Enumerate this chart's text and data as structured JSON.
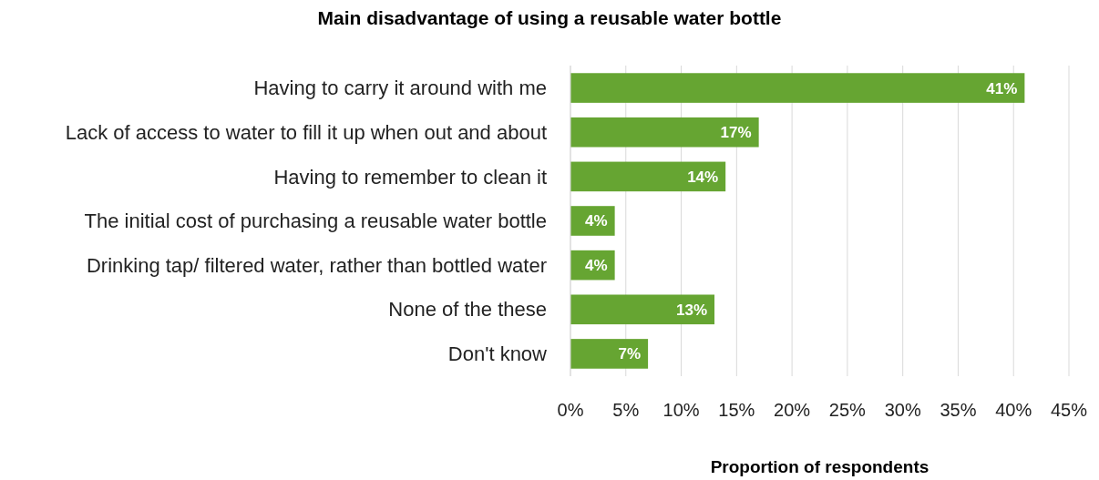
{
  "chart_data": {
    "type": "bar",
    "orientation": "horizontal",
    "title": "Main disadvantage of using a reusable water bottle",
    "xlabel": "Proportion of respondents",
    "categories": [
      "Having to carry it around with me",
      "Lack of access to water to fill it up when out and about",
      "Having to remember to clean it",
      "The initial cost of purchasing a reusable water bottle",
      "Drinking tap/ filtered water, rather than bottled water",
      "None of the these",
      "Don't know"
    ],
    "values": [
      41,
      17,
      14,
      4,
      4,
      13,
      7
    ],
    "color": "#66a532",
    "value_labels": [
      "41%",
      "17%",
      "14%",
      "4%",
      "4%",
      "13%",
      "7%"
    ],
    "xlim": [
      0,
      45
    ],
    "xticks": [
      {
        "value": 0,
        "label": "0%"
      },
      {
        "value": 5,
        "label": "5%"
      },
      {
        "value": 10,
        "label": "10%"
      },
      {
        "value": 15,
        "label": "15%"
      },
      {
        "value": 20,
        "label": "20%"
      },
      {
        "value": 25,
        "label": "25%"
      },
      {
        "value": 30,
        "label": "30%"
      },
      {
        "value": 35,
        "label": "35%"
      },
      {
        "value": 40,
        "label": "40%"
      },
      {
        "value": 45,
        "label": "45%"
      }
    ],
    "grid": "x"
  }
}
